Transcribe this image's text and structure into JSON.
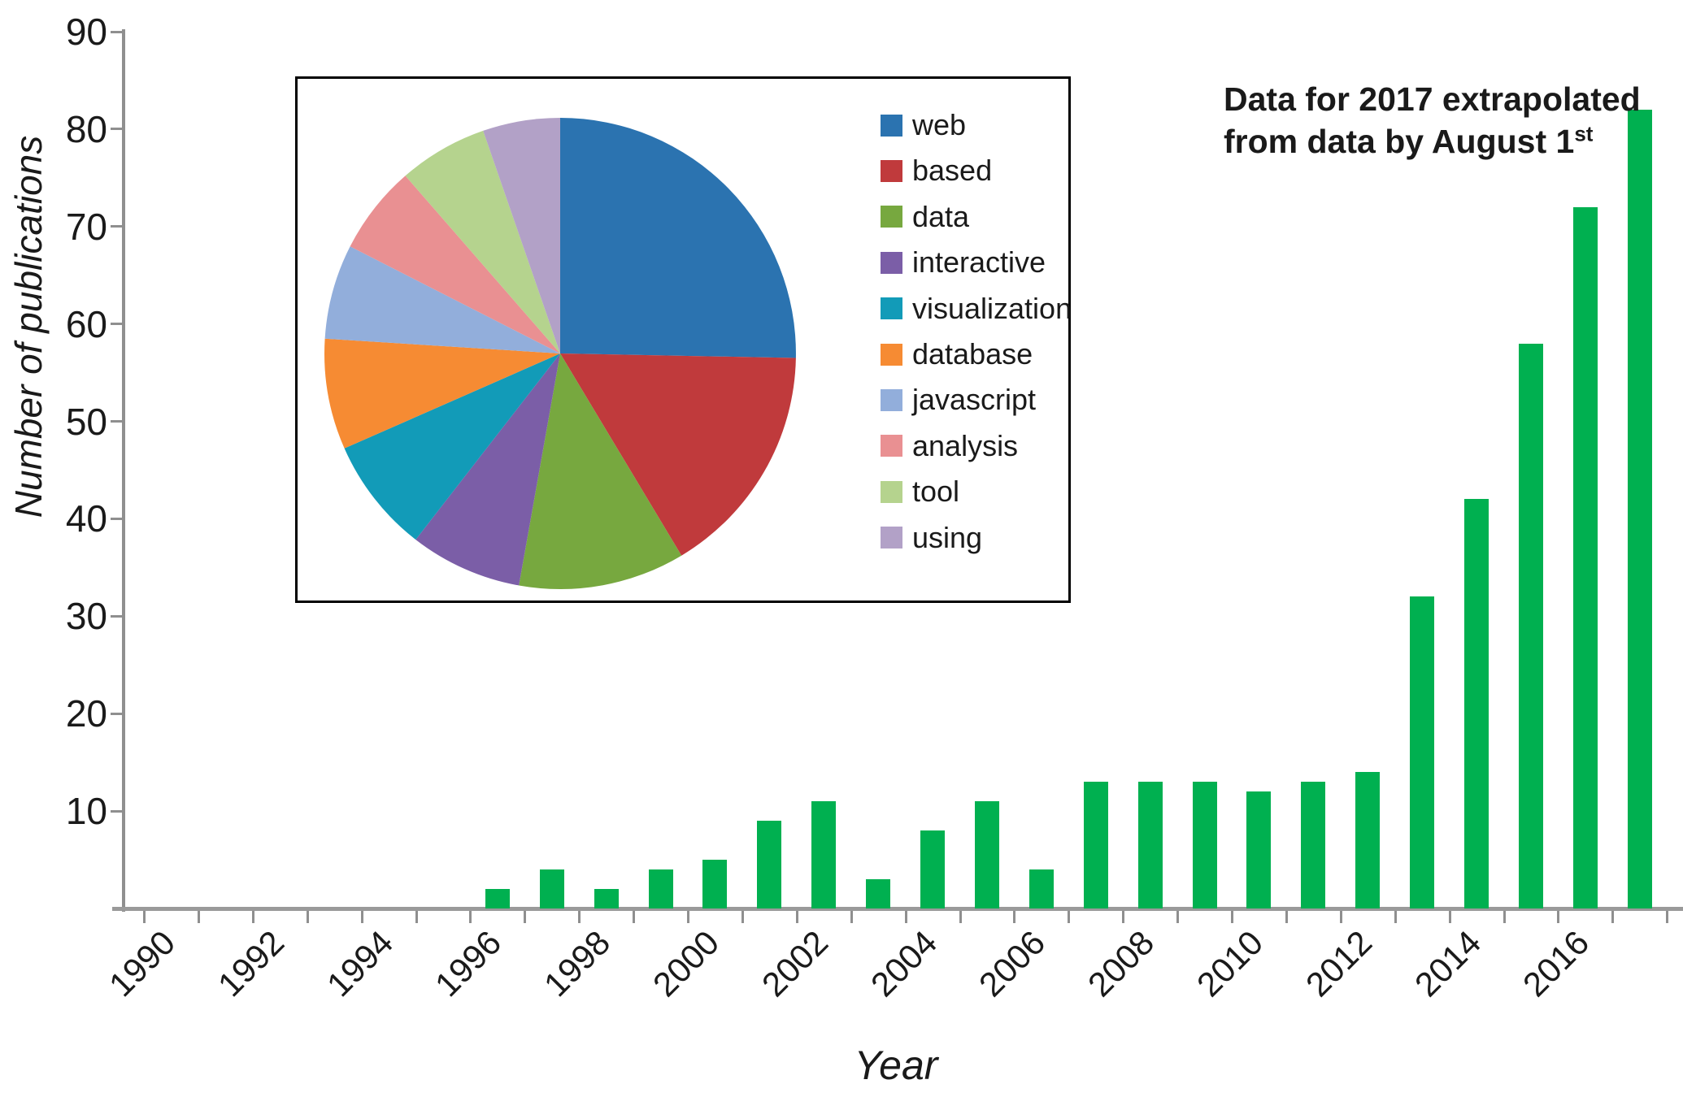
{
  "chart_data": {
    "type": "bar",
    "title": "",
    "xlabel": "Year",
    "ylabel": "Number of publications",
    "ylim": [
      0,
      90
    ],
    "ytick_interval": 10,
    "ytick_labels": [
      "90",
      "80",
      "70",
      "60",
      "50",
      "40",
      "30",
      "20",
      "10"
    ],
    "axis_year_start": 1990,
    "axis_year_end": 2018,
    "labeled_years": [
      1990,
      1992,
      1994,
      1996,
      1998,
      2000,
      2002,
      2004,
      2006,
      2008,
      2010,
      2012,
      2014,
      2016
    ],
    "categories": [
      1990,
      1991,
      1992,
      1993,
      1994,
      1995,
      1996,
      1997,
      1998,
      1999,
      2000,
      2001,
      2002,
      2003,
      2004,
      2005,
      2006,
      2007,
      2008,
      2009,
      2010,
      2011,
      2012,
      2013,
      2014,
      2015,
      2016,
      2017
    ],
    "values": [
      0,
      0,
      0,
      0,
      0,
      0,
      2,
      4,
      2,
      4,
      5,
      9,
      11,
      3,
      8,
      11,
      4,
      13,
      13,
      13,
      12,
      13,
      14,
      32,
      42,
      58,
      72,
      82
    ],
    "bar_color": "#00B050",
    "grid": "off",
    "annotation": {
      "line1": "Data for 2017 extrapolated",
      "line2_prefix": "from data by August 1",
      "line2_superscript": "st"
    },
    "inset_pie": {
      "type": "pie",
      "legend_position": "right",
      "slices": [
        {
          "label": "web",
          "percent": 25.3,
          "color": "#2B73B0"
        },
        {
          "label": "based",
          "percent": 16.1,
          "color": "#C03A3C"
        },
        {
          "label": "data",
          "percent": 11.4,
          "color": "#77A83F"
        },
        {
          "label": "interactive",
          "percent": 7.7,
          "color": "#7B5EA7"
        },
        {
          "label": "visualization",
          "percent": 7.9,
          "color": "#129BB8"
        },
        {
          "label": "database",
          "percent": 7.6,
          "color": "#F68B33"
        },
        {
          "label": "javascript",
          "percent": 6.5,
          "color": "#92AEDB"
        },
        {
          "label": "analysis",
          "percent": 6.1,
          "color": "#E99092"
        },
        {
          "label": "tool",
          "percent": 6.1,
          "color": "#B5D38E"
        },
        {
          "label": "using",
          "percent": 5.3,
          "color": "#B2A1C7"
        }
      ]
    }
  }
}
